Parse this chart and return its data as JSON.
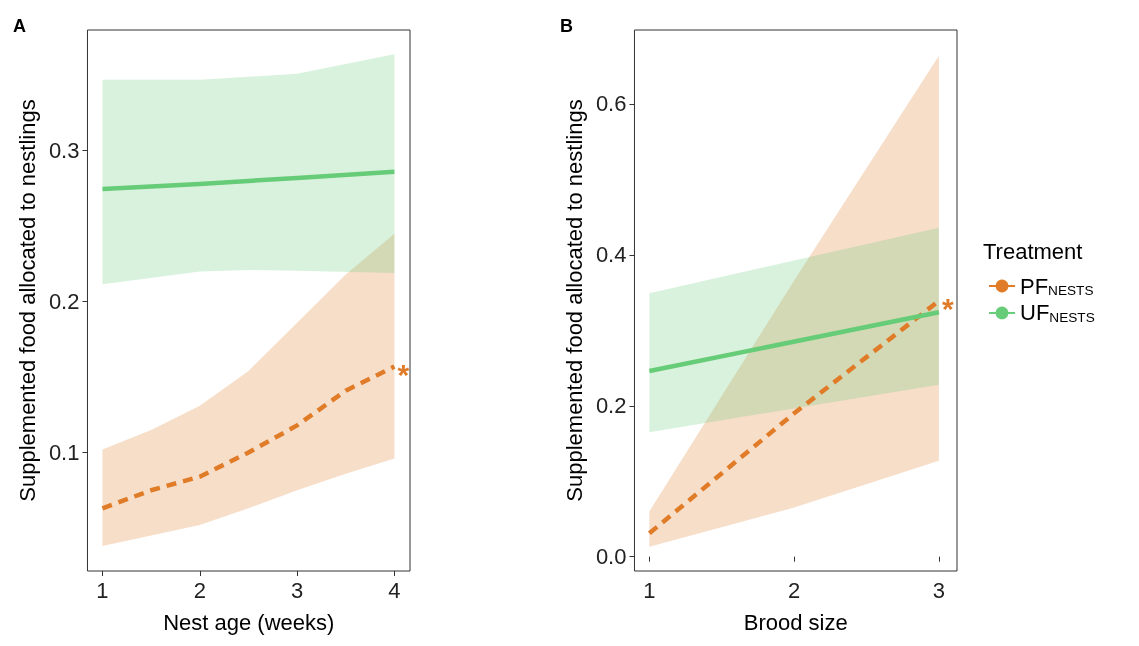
{
  "chart_data": [
    {
      "type": "line",
      "title": "A",
      "xlabel": "Nest age (weeks)",
      "ylabel": "Supplemented food allocated to nestlings",
      "xlim": [
        0.846,
        4.16
      ],
      "ylim": [
        0.0215,
        0.38
      ],
      "xticks": [
        1,
        2,
        3,
        4
      ],
      "yticks": [
        0.1,
        0.2,
        0.3
      ],
      "grid": false,
      "legend": false,
      "marker": "none",
      "series": [
        {
          "color": "#e07b28",
          "line_style": "dashed",
          "x": [
            1,
            1.5,
            2,
            2.5,
            3,
            3.5,
            4
          ],
          "values": [
            0.063,
            0.075,
            0.084,
            0.1,
            0.118,
            0.141,
            0.157
          ],
          "lower": [
            0.038,
            0.045,
            0.052,
            0.063,
            0.075,
            0.086,
            0.096
          ],
          "upper": [
            0.102,
            0.115,
            0.131,
            0.154,
            0.186,
            0.218,
            0.245
          ]
        },
        {
          "color": "#66cc77",
          "line_style": "solid",
          "x": [
            1,
            2,
            2.5,
            3,
            4
          ],
          "values": [
            0.2746,
            0.278,
            0.28,
            0.282,
            0.286
          ],
          "lower": [
            0.2116,
            0.22,
            0.221,
            0.2205,
            0.219
          ],
          "upper": [
            0.347,
            0.347,
            0.349,
            0.351,
            0.364
          ]
        }
      ],
      "annotations": [
        {
          "text": "*",
          "x": 4,
          "y": 0.157
        }
      ]
    },
    {
      "type": "line",
      "title": "B",
      "xlabel": "Brood size",
      "ylabel": "Supplemented food allocated to nestlings",
      "legend_title": "Treatment",
      "xlim": [
        0.897,
        3.125
      ],
      "ylim": [
        -0.019,
        0.698
      ],
      "xticks": [
        1,
        2,
        3
      ],
      "yticks": [
        {
          "value": 0,
          "label": "0.0"
        },
        0.2,
        0.4,
        0.6
      ],
      "grid": false,
      "legend": "right",
      "marker": "none",
      "series": [
        {
          "name": "PF$_{NESTS}$",
          "color": "#e07b28",
          "line_style": "dashed",
          "x": [
            1,
            2,
            3
          ],
          "values": [
            0.031,
            0.19,
            0.339
          ],
          "lower": [
            0.013,
            0.065,
            0.127
          ],
          "upper": [
            0.06,
            0.366,
            0.664
          ]
        },
        {
          "name": "UF$_{NESTS}$",
          "color": "#66cc77",
          "line_style": "solid",
          "x": [
            1,
            3
          ],
          "values": [
            0.246,
            0.324
          ],
          "lower": [
            0.165,
            0.228
          ],
          "upper": [
            0.349,
            0.436
          ]
        }
      ],
      "annotations": [
        {
          "text": "*",
          "x": 3,
          "y": 0.339
        }
      ]
    }
  ]
}
